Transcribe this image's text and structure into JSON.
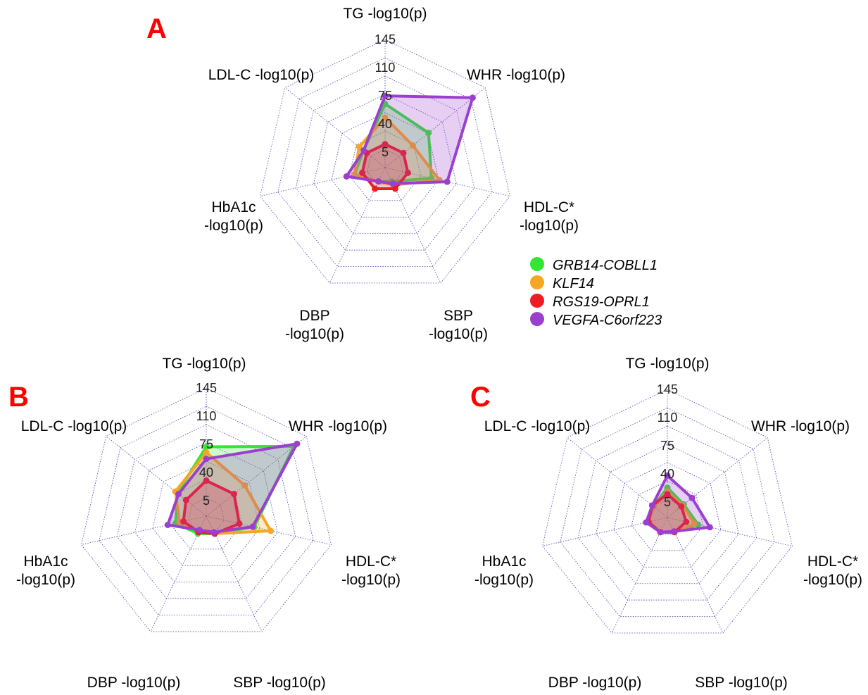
{
  "legend": [
    {
      "name": "GRB14-COBLL1",
      "color": "#33e633"
    },
    {
      "name": "KLF14",
      "color": "#f5a623"
    },
    {
      "name": "RGS19-OPRL1",
      "color": "#ee1c24"
    },
    {
      "name": "VEGFA-C6orf223",
      "color": "#9b3fcf"
    }
  ],
  "chart_data": [
    {
      "type": "radar",
      "panel": "A",
      "axes": [
        "TG -log10(p)",
        "WHR -log10(p)",
        "HDL-C* -log10(p)",
        "SBP -log10(p)",
        "DBP -log10(p)",
        "HbA1c -log10(p)",
        "LDL-C -log10(p)"
      ],
      "rings": [
        5,
        40,
        75,
        110,
        145
      ],
      "ring_labels": [
        "5",
        "40",
        "75",
        "110",
        "145"
      ],
      "series": [
        {
          "name": "GRB14-COBLL1",
          "values": [
            65,
            55,
            45,
            5,
            5,
            25,
            20
          ]
        },
        {
          "name": "KLF14",
          "values": [
            48,
            30,
            55,
            10,
            5,
            25,
            27
          ]
        },
        {
          "name": "RGS19-OPRL1",
          "values": [
            15,
            15,
            15,
            15,
            15,
            15,
            15
          ]
        },
        {
          "name": "VEGFA-C6orf223",
          "values": [
            75,
            125,
            65,
            8,
            5,
            35,
            20
          ]
        }
      ]
    },
    {
      "type": "radar",
      "panel": "B",
      "axes": [
        "TG -log10(p)",
        "WHR -log10(p)",
        "HDL-C* -log10(p)",
        "SBP -log10(p)",
        "DBP -log10(p)",
        "HbA1c -log10(p)",
        "LDL-C -log10(p)"
      ],
      "rings": [
        5,
        40,
        75,
        110,
        145
      ],
      "ring_labels": [
        "5",
        "40",
        "75",
        "110",
        "145"
      ],
      "series": [
        {
          "name": "GRB14-COBLL1",
          "values": [
            72,
            125,
            47,
            10,
            10,
            25,
            32
          ]
        },
        {
          "name": "KLF14",
          "values": [
            65,
            47,
            68,
            10,
            7,
            20,
            35
          ]
        },
        {
          "name": "RGS19-OPRL1",
          "values": [
            30,
            30,
            28,
            10,
            8,
            15,
            18
          ]
        },
        {
          "name": "VEGFA-C6orf223",
          "values": [
            57,
            130,
            45,
            8,
            5,
            35,
            30
          ]
        }
      ]
    },
    {
      "type": "radar",
      "panel": "C",
      "axes": [
        "TG -log10(p)",
        "WHR -log10(p)",
        "HDL-C* -log10(p)",
        "SBP -log10(p)",
        "DBP -log10(p)",
        "HbA1c -log10(p)",
        "LDL-C -log10(p)"
      ],
      "rings": [
        5,
        40,
        75,
        110,
        145
      ],
      "ring_labels": [
        "5",
        "40",
        "75",
        "110",
        "145"
      ],
      "series": [
        {
          "name": "GRB14-COBLL1",
          "values": [
            23,
            12,
            25,
            6,
            6,
            10,
            8
          ]
        },
        {
          "name": "KLF14",
          "values": [
            18,
            10,
            20,
            6,
            6,
            10,
            8
          ]
        },
        {
          "name": "RGS19-OPRL1",
          "values": [
            15,
            8,
            10,
            6,
            6,
            10,
            10
          ]
        },
        {
          "name": "VEGFA-C6orf223",
          "values": [
            38,
            25,
            40,
            5,
            6,
            13,
            10
          ]
        }
      ]
    }
  ]
}
